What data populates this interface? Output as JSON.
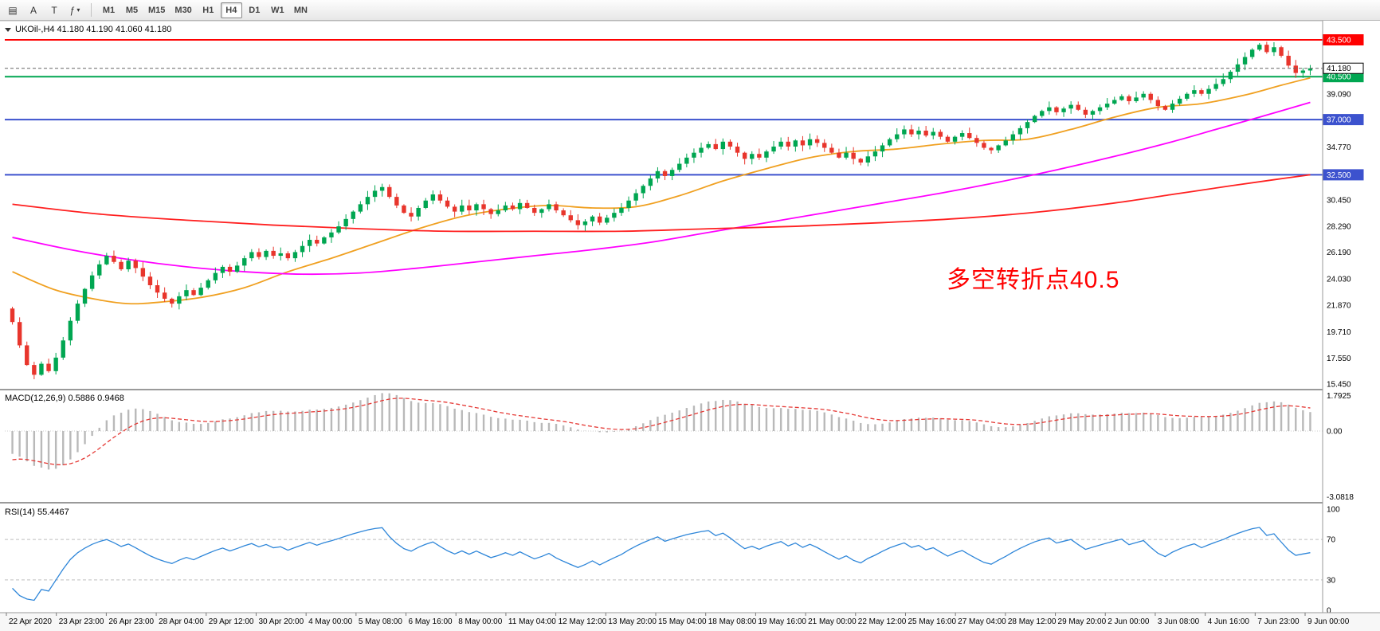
{
  "toolbar": {
    "left_buttons": [
      {
        "name": "chart-window",
        "glyph": "▤"
      },
      {
        "name": "auto-arrange",
        "glyph": "A"
      },
      {
        "name": "text-tool",
        "glyph": "T"
      },
      {
        "name": "indicators",
        "glyph": "ƒ",
        "caret": "▾"
      }
    ],
    "timeframes": [
      "M1",
      "M5",
      "M15",
      "M30",
      "H1",
      "H4",
      "D1",
      "W1",
      "MN"
    ],
    "active_timeframe": "H4"
  },
  "chart": {
    "symbol_title": "UKOil-,H4  41.180 41.190 41.060 41.180",
    "annotation": "多空转折点40.5",
    "annotation_color": "#FF0000",
    "current_price": {
      "value": 41.18,
      "label": "41.180"
    },
    "hlines": [
      {
        "value": 43.5,
        "label": "43.500",
        "color": "#FF0000"
      },
      {
        "value": 40.5,
        "label": "40.500",
        "color": "#00A651"
      },
      {
        "value": 37.0,
        "label": "37.000",
        "color": "#3C52CE"
      },
      {
        "value": 32.5,
        "label": "32.500",
        "color": "#3C52CE"
      }
    ],
    "y_ticks": [
      {
        "value": 39.09,
        "label": "39.090"
      },
      {
        "value": 34.77,
        "label": "34.770"
      },
      {
        "value": 30.45,
        "label": "30.450"
      },
      {
        "value": 28.29,
        "label": "28.290"
      },
      {
        "value": 26.19,
        "label": "26.190"
      },
      {
        "value": 24.03,
        "label": "24.030"
      },
      {
        "value": 21.87,
        "label": "21.870"
      },
      {
        "value": 19.71,
        "label": "19.710"
      },
      {
        "value": 17.55,
        "label": "17.550"
      },
      {
        "value": 15.45,
        "label": "15.450"
      }
    ]
  },
  "chart_data": {
    "type": "candlestick",
    "symbol": "UKOil",
    "timeframe": "H4",
    "last_ohlc": [
      41.18,
      41.19,
      41.06,
      41.18
    ],
    "y_range": [
      15.12,
      44.9
    ],
    "colors": {
      "up": "#00A651",
      "down": "#E8352C"
    },
    "open_first": 21.6,
    "closes": [
      20.5,
      18.6,
      17.0,
      16.2,
      17.1,
      16.5,
      17.6,
      19.0,
      20.6,
      22.0,
      23.2,
      24.3,
      25.2,
      25.9,
      25.4,
      24.8,
      25.5,
      24.9,
      24.2,
      23.5,
      22.9,
      22.4,
      22.0,
      22.6,
      23.1,
      22.7,
      23.3,
      23.9,
      24.5,
      25.0,
      24.6,
      25.1,
      25.7,
      26.2,
      25.8,
      26.3,
      25.9,
      26.1,
      25.7,
      26.2,
      26.7,
      27.2,
      26.9,
      27.4,
      27.8,
      28.3,
      28.9,
      29.5,
      30.1,
      30.7,
      31.2,
      31.5,
      30.7,
      30.0,
      29.4,
      29.1,
      29.8,
      30.4,
      30.9,
      30.4,
      29.9,
      29.5,
      30.0,
      29.6,
      30.1,
      29.7,
      29.3,
      29.6,
      30.0,
      29.7,
      30.2,
      29.8,
      29.4,
      29.7,
      30.1,
      29.6,
      29.2,
      28.8,
      28.4,
      28.7,
      29.1,
      28.6,
      29.0,
      29.4,
      29.8,
      30.4,
      31.0,
      31.6,
      32.2,
      32.8,
      32.4,
      32.9,
      33.4,
      33.9,
      34.3,
      34.7,
      35.0,
      34.6,
      35.2,
      34.8,
      34.3,
      33.8,
      34.2,
      33.9,
      34.4,
      34.8,
      35.2,
      34.8,
      35.3,
      34.9,
      35.4,
      35.1,
      34.7,
      34.3,
      33.9,
      34.3,
      33.8,
      33.5,
      34.0,
      34.4,
      34.9,
      35.4,
      35.8,
      36.2,
      35.8,
      36.1,
      35.7,
      36.0,
      35.6,
      35.2,
      35.6,
      35.9,
      35.5,
      35.1,
      34.7,
      34.5,
      34.9,
      35.3,
      35.8,
      36.3,
      36.8,
      37.3,
      37.7,
      38.0,
      37.6,
      37.9,
      38.2,
      37.8,
      37.4,
      37.7,
      38.0,
      38.3,
      38.6,
      38.9,
      38.5,
      38.8,
      39.1,
      38.6,
      38.1,
      37.8,
      38.3,
      38.7,
      39.1,
      39.4,
      39.1,
      39.5,
      39.9,
      40.3,
      40.9,
      41.5,
      42.1,
      42.7,
      43.1,
      42.5,
      42.9,
      42.2,
      41.4,
      40.8,
      41.0,
      41.18
    ],
    "prehistory_closes": [
      30.5,
      30.1,
      29.7,
      29.3,
      28.9,
      28.5,
      28.1,
      27.7,
      27.3,
      26.9,
      26.5,
      26.1,
      25.7,
      25.3,
      24.9,
      24.5,
      24.1,
      23.8,
      23.4,
      23.0,
      22.7,
      22.4,
      22.1,
      21.8,
      21.6,
      21.4,
      21.2,
      21.0,
      20.9,
      20.8,
      20.9,
      21.0,
      20.8,
      20.9,
      21.1,
      21.0,
      20.9,
      21.2,
      21.4,
      21.6
    ],
    "ma_lines": [
      {
        "name": "ma-fast",
        "color": "#F0A020",
        "points": [
          [
            0,
            24.6
          ],
          [
            6,
            23.1
          ],
          [
            12,
            22.3
          ],
          [
            16,
            22.0
          ],
          [
            20,
            22.1
          ],
          [
            26,
            22.5
          ],
          [
            32,
            23.3
          ],
          [
            38,
            24.6
          ],
          [
            44,
            25.7
          ],
          [
            50,
            26.9
          ],
          [
            56,
            28.1
          ],
          [
            62,
            29.1
          ],
          [
            68,
            29.7
          ],
          [
            74,
            30.0
          ],
          [
            80,
            29.8
          ],
          [
            86,
            29.9
          ],
          [
            92,
            30.8
          ],
          [
            98,
            32.0
          ],
          [
            104,
            33.0
          ],
          [
            110,
            33.9
          ],
          [
            116,
            34.4
          ],
          [
            122,
            34.6
          ],
          [
            128,
            35.0
          ],
          [
            134,
            35.3
          ],
          [
            140,
            35.4
          ],
          [
            146,
            36.2
          ],
          [
            152,
            37.2
          ],
          [
            158,
            38.0
          ],
          [
            164,
            38.3
          ],
          [
            170,
            39.0
          ],
          [
            175,
            39.8
          ],
          [
            179,
            40.4
          ]
        ]
      },
      {
        "name": "ma-mid",
        "color": "#FF00FF",
        "points": [
          [
            0,
            27.4
          ],
          [
            8,
            26.4
          ],
          [
            16,
            25.6
          ],
          [
            24,
            25.0
          ],
          [
            32,
            24.6
          ],
          [
            40,
            24.4
          ],
          [
            48,
            24.5
          ],
          [
            56,
            24.9
          ],
          [
            64,
            25.4
          ],
          [
            72,
            25.9
          ],
          [
            80,
            26.4
          ],
          [
            88,
            27.0
          ],
          [
            96,
            27.8
          ],
          [
            104,
            28.6
          ],
          [
            112,
            29.4
          ],
          [
            120,
            30.2
          ],
          [
            128,
            31.0
          ],
          [
            136,
            31.9
          ],
          [
            144,
            32.9
          ],
          [
            152,
            34.0
          ],
          [
            160,
            35.2
          ],
          [
            166,
            36.2
          ],
          [
            172,
            37.2
          ],
          [
            179,
            38.4
          ]
        ]
      },
      {
        "name": "ma-slow",
        "color": "#FF2020",
        "points": [
          [
            0,
            30.1
          ],
          [
            12,
            29.3
          ],
          [
            24,
            28.8
          ],
          [
            36,
            28.4
          ],
          [
            48,
            28.1
          ],
          [
            60,
            27.9
          ],
          [
            72,
            27.9
          ],
          [
            84,
            27.9
          ],
          [
            96,
            28.1
          ],
          [
            108,
            28.3
          ],
          [
            120,
            28.6
          ],
          [
            132,
            29.0
          ],
          [
            142,
            29.5
          ],
          [
            152,
            30.2
          ],
          [
            160,
            30.9
          ],
          [
            168,
            31.6
          ],
          [
            174,
            32.1
          ],
          [
            179,
            32.5
          ]
        ]
      }
    ],
    "x_labels": [
      "22 Apr 2020",
      "23 Apr 23:00",
      "26 Apr 23:00",
      "28 Apr 04:00",
      "29 Apr 12:00",
      "30 Apr 20:00",
      "4 May 00:00",
      "5 May 08:00",
      "6 May 16:00",
      "8 May 00:00",
      "11 May 04:00",
      "12 May 12:00",
      "13 May 20:00",
      "15 May 04:00",
      "18 May 08:00",
      "19 May 16:00",
      "21 May 00:00",
      "22 May 12:00",
      "25 May 16:00",
      "27 May 04:00",
      "28 May 12:00",
      "29 May 20:00",
      "2 Jun 00:00",
      "3 Jun 08:00",
      "4 Jun 16:00",
      "7 Jun 23:00",
      "9 Jun 00:00"
    ]
  },
  "macd_panel": {
    "title": "MACD(12,26,9) 0.5886 0.9468",
    "main_value": 0.5886,
    "signal_value": 0.9468,
    "labels": [
      {
        "value": 1.7925,
        "label": "1.7925"
      },
      {
        "value": 0,
        "label": "0.00"
      },
      {
        "value": -3.0818,
        "label": "-3.0818"
      }
    ],
    "hist_color": "#b9b9b9",
    "signal_color": "#E53935"
  },
  "rsi_panel": {
    "title": "RSI(14) 55.4467",
    "value": 55.4467,
    "line_color": "#2E86D9",
    "levels": [
      {
        "value": 100,
        "label": "100",
        "dashed": false
      },
      {
        "value": 70,
        "label": "70",
        "dashed": true
      },
      {
        "value": 30,
        "label": "30",
        "dashed": true
      },
      {
        "value": 0,
        "label": "0",
        "dashed": false
      }
    ]
  }
}
